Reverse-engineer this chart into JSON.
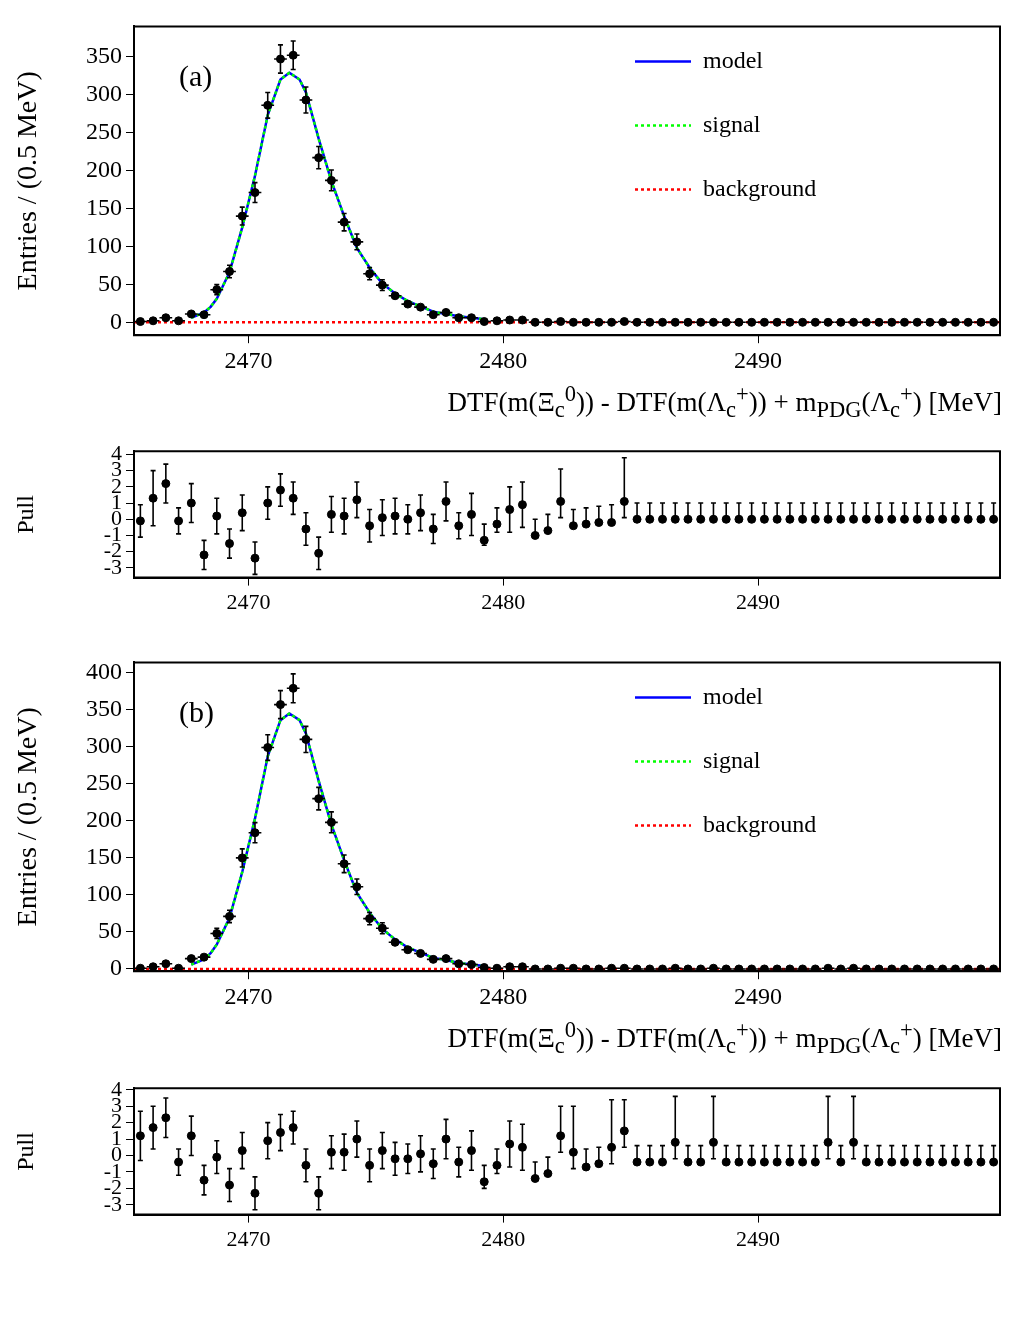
{
  "chart_data": [
    {
      "type": "scatter",
      "xlabel": "DTF(m(Ξ$_{c}$$^{0}$)) - DTF(m(Λ$_{c}$$^{+}$)) + m$_{PDG}$(Λ$_{c}$$^{+}$) [MeV]",
      "ylabel": "Entries / (0.5 MeV)",
      "annotations": [
        "(a)"
      ],
      "xlim": [
        2465.5,
        2499.5
      ],
      "xticks": [
        2470,
        2480,
        2490
      ],
      "ylim": [
        -17,
        390
      ],
      "yticks": [
        0,
        50,
        100,
        150,
        200,
        250,
        300,
        350
      ],
      "legend": "top right",
      "marker": "circle",
      "series": [
        {
          "color": "#000000",
          "x": [
            2465.75,
            2466.25,
            2466.75,
            2467.25,
            2467.75,
            2468.25,
            2468.75,
            2469.25,
            2469.75,
            2470.25,
            2470.75,
            2471.25,
            2471.75,
            2472.25,
            2472.75,
            2473.25,
            2473.75,
            2474.25,
            2474.75,
            2475.25,
            2475.75,
            2476.25,
            2476.75,
            2477.25,
            2477.75,
            2478.25,
            2478.75,
            2479.25,
            2479.75,
            2480.25,
            2480.75,
            2481.25,
            2481.75,
            2482.25,
            2482.75,
            2483.25,
            2483.75,
            2484.25,
            2484.75,
            2485.25,
            2485.75,
            2486.25,
            2486.75,
            2487.25,
            2487.75,
            2488.25,
            2488.75,
            2489.25,
            2489.75,
            2490.25,
            2490.75,
            2491.25,
            2491.75,
            2492.25,
            2492.75,
            2493.25,
            2493.75,
            2494.25,
            2494.75,
            2495.25,
            2495.75,
            2496.25,
            2496.75,
            2497.25,
            2497.75,
            2498.25,
            2498.75,
            2499.25
          ],
          "values": [
            1,
            2,
            6,
            2,
            11,
            10,
            43,
            67,
            140,
            171,
            286,
            347,
            352,
            293,
            217,
            187,
            132,
            106,
            64,
            49,
            35,
            24,
            20,
            10,
            13,
            6,
            6,
            1,
            2,
            3,
            3,
            0,
            0,
            1,
            0,
            0,
            0,
            0,
            1,
            0,
            0,
            0,
            0,
            0,
            0,
            0,
            0,
            0,
            0,
            0,
            0,
            0,
            0,
            0,
            0,
            0,
            0,
            0,
            0,
            0,
            0,
            0,
            0,
            0,
            0,
            0,
            0,
            0
          ],
          "errors": [
            null,
            null,
            null,
            null,
            null,
            null,
            6.6,
            8.2,
            11.8,
            13.1,
            16.9,
            18.6,
            18.8,
            17.1,
            14.7,
            13.7,
            11.5,
            10.3,
            8,
            7,
            null,
            null,
            null,
            null,
            null,
            null,
            null,
            null,
            null,
            null,
            null,
            null,
            null,
            null,
            null,
            null,
            null,
            null,
            null,
            null,
            null,
            null,
            null,
            null,
            null,
            null,
            null,
            null,
            null,
            null,
            null,
            null,
            null,
            null,
            null,
            null,
            null,
            null,
            null,
            null,
            null,
            null,
            null,
            null,
            null,
            null,
            null,
            null
          ],
          "xerrors": [
            0.25,
            0.25,
            0.25,
            0.25,
            0.25,
            0.25,
            0.25,
            0.25,
            0.25,
            0.25,
            0.25,
            0.25,
            0.25,
            0.25,
            0.25,
            0.25,
            0.25,
            0.25,
            0.25,
            0.25,
            0.25,
            0.25,
            0.25,
            0.25,
            0.25,
            0.25,
            0.25,
            0.25,
            0.25,
            0.25,
            0.25,
            0.25,
            0.25,
            0.25,
            0.25,
            0.25,
            0.25,
            0.25,
            0.25,
            0.25,
            0.25,
            0.25,
            0.25,
            0.25,
            0.25,
            0.25,
            0.25,
            0.25,
            0.25,
            0.25,
            0.25,
            0.25,
            0.25,
            0.25,
            0.25,
            0.25,
            0.25,
            0.25,
            0.25,
            0.25,
            0.25,
            0.25,
            0.25,
            0.25,
            0.25,
            0.25,
            0.25,
            0.25
          ]
        },
        {
          "type": "line",
          "name": "model",
          "color": "#0000ff",
          "line_style": "solid",
          "marker": "none",
          "x": [
            2467.75,
            2468.25,
            2468.5,
            2468.75,
            2469.25,
            2469.75,
            2470.25,
            2470.75,
            2471.25,
            2471.6,
            2472.0,
            2472.25,
            2472.75,
            2473.25,
            2473.75,
            2474.25,
            2474.75,
            2475.25,
            2475.75,
            2476.25,
            2476.75,
            2477.25,
            2477.75,
            2478.25,
            2478.75,
            2479.25
          ],
          "values": [
            6,
            13,
            20,
            31,
            66,
            125,
            193,
            273,
            320,
            329,
            320,
            303,
            242,
            186,
            140,
            98,
            72,
            51,
            38,
            28,
            21,
            14,
            11,
            8,
            6,
            4
          ]
        },
        {
          "type": "line",
          "name": "signal",
          "color": "#00ff00",
          "line_style": "dotted",
          "marker": "none",
          "x": [
            2467.75,
            2468.25,
            2468.5,
            2468.75,
            2469.25,
            2469.75,
            2470.25,
            2470.75,
            2471.25,
            2471.6,
            2472.0,
            2472.25,
            2472.75,
            2473.25,
            2473.75,
            2474.25,
            2474.75,
            2475.25,
            2475.75,
            2476.25,
            2476.75,
            2477.25,
            2477.75,
            2478.25,
            2478.75,
            2479.25
          ],
          "values": [
            6,
            13,
            20,
            31,
            66,
            125,
            193,
            273,
            320,
            329,
            320,
            303,
            242,
            186,
            140,
            98,
            72,
            51,
            38,
            28,
            21,
            14,
            11,
            8,
            6,
            4
          ]
        },
        {
          "type": "line",
          "name": "background",
          "color": "#ff0000",
          "line_style": "dotted",
          "marker": "none",
          "x": [
            2465.5,
            2499.5
          ],
          "values": [
            0,
            0
          ]
        }
      ]
    },
    {
      "type": "scatter",
      "ylabel": "Pull",
      "xlim": [
        2465.5,
        2499.5
      ],
      "xticks": [
        2470,
        2480,
        2490
      ],
      "ylim": [
        -3.6,
        4.2
      ],
      "yticks": [
        -3,
        -2,
        -1,
        0,
        1,
        2,
        3,
        4
      ],
      "marker": "circle",
      "series": [
        {
          "color": "#000000",
          "x": [
            2465.75,
            2466.25,
            2466.75,
            2467.25,
            2467.75,
            2468.25,
            2468.75,
            2469.25,
            2469.75,
            2470.25,
            2470.75,
            2471.25,
            2471.75,
            2472.25,
            2472.75,
            2473.25,
            2473.75,
            2474.25,
            2474.75,
            2475.25,
            2475.75,
            2476.25,
            2476.75,
            2477.25,
            2477.75,
            2478.25,
            2478.75,
            2479.25,
            2479.75,
            2480.25,
            2480.75,
            2481.25,
            2481.75,
            2482.25,
            2482.75,
            2483.25,
            2483.75,
            2484.25,
            2484.75,
            2485.25,
            2485.75,
            2486.25,
            2486.75,
            2487.25,
            2487.75,
            2488.25,
            2488.75,
            2489.25,
            2489.75,
            2490.25,
            2490.75,
            2491.25,
            2491.75,
            2492.25,
            2492.75,
            2493.25,
            2493.75,
            2494.25,
            2494.75,
            2495.25,
            2495.75,
            2496.25,
            2496.75,
            2497.25,
            2497.75,
            2498.25,
            2498.75,
            2499.25
          ],
          "values": [
            -0.1,
            1.3,
            2.2,
            -0.1,
            1.0,
            -2.2,
            0.2,
            -1.5,
            0.4,
            -2.4,
            1.0,
            1.8,
            1.3,
            -0.6,
            -2.1,
            0.3,
            0.2,
            1.2,
            -0.4,
            0.1,
            0.2,
            0.0,
            0.4,
            -0.6,
            1.1,
            -0.4,
            0.3,
            -1.3,
            -0.3,
            0.6,
            0.9,
            -1.0,
            -0.7,
            1.1,
            -0.4,
            -0.3,
            -0.2,
            -0.2,
            1.1,
            0,
            0,
            0,
            0,
            0,
            0,
            0,
            0,
            0,
            0,
            0,
            0,
            0,
            0,
            0,
            0,
            0,
            0,
            0,
            0,
            0,
            0,
            0,
            0,
            0,
            0,
            0,
            0,
            0
          ],
          "errors": [
            1,
            1.7,
            1.2,
            0.8,
            1.2,
            0.9,
            1.1,
            0.9,
            1.1,
            1.0,
            1.0,
            1.0,
            1.0,
            1.0,
            1.0,
            1.1,
            1.1,
            1.1,
            1.0,
            1.1,
            1.1,
            0.9,
            1.1,
            0.9,
            1.2,
            0.8,
            1.3,
            [
              -1.6,
              -0.3
            ],
            [
              -0.8,
              0.7
            ],
            1.4,
            1.4,
            [
              -1.0,
              0.0
            ],
            [
              -0.7,
              0.3
            ],
            [
              0.1,
              3.1
            ],
            [
              -0.4,
              0.6
            ],
            [
              -0.3,
              0.7
            ],
            [
              -0.2,
              0.8
            ],
            [
              -0.2,
              0.9
            ],
            [
              0.1,
              3.8
            ],
            [
              0,
              1
            ],
            [
              0,
              1
            ],
            [
              0,
              1
            ],
            [
              0,
              1
            ],
            [
              0,
              1
            ],
            [
              0,
              1
            ],
            [
              0,
              1
            ],
            [
              0,
              1
            ],
            [
              0,
              1
            ],
            [
              0,
              1
            ],
            [
              0,
              1
            ],
            [
              0,
              1
            ],
            [
              0,
              1
            ],
            [
              0,
              1
            ],
            [
              0,
              1
            ],
            [
              0,
              1
            ],
            [
              0,
              1
            ],
            [
              0,
              1
            ],
            [
              0,
              1
            ],
            [
              0,
              1
            ],
            [
              0,
              1
            ],
            [
              0,
              1
            ],
            [
              0,
              1
            ],
            [
              0,
              1
            ],
            [
              0,
              1
            ],
            [
              0,
              1
            ],
            [
              0,
              1
            ],
            [
              0,
              1
            ],
            [
              0,
              1
            ]
          ]
        }
      ]
    },
    {
      "type": "scatter",
      "xlabel": "DTF(m(Ξ$_{c}$$^{0}$)) - DTF(m(Λ$_{c}$$^{+}$)) + m$_{PDG}$(Λ$_{c}$$^{+}$) [MeV]",
      "ylabel": "Entries / (0.5 MeV)",
      "annotations": [
        "(b)"
      ],
      "xlim": [
        2465.5,
        2499.5
      ],
      "xticks": [
        2470,
        2480,
        2490
      ],
      "ylim": [
        -3,
        414
      ],
      "yticks": [
        0,
        50,
        100,
        150,
        200,
        250,
        300,
        350,
        400
      ],
      "legend": "top right",
      "marker": "circle",
      "series": [
        {
          "color": "#000000",
          "x": [
            2465.75,
            2466.25,
            2466.75,
            2467.25,
            2467.75,
            2468.25,
            2468.75,
            2469.25,
            2469.75,
            2470.25,
            2470.75,
            2471.25,
            2471.75,
            2472.25,
            2472.75,
            2473.25,
            2473.75,
            2474.25,
            2474.75,
            2475.25,
            2475.75,
            2476.25,
            2476.75,
            2477.25,
            2477.75,
            2478.25,
            2478.75,
            2479.25,
            2479.75,
            2480.25,
            2480.75,
            2481.25,
            2481.75,
            2482.25,
            2482.75,
            2483.25,
            2483.75,
            2484.25,
            2484.75,
            2485.25,
            2485.75,
            2486.25,
            2486.75,
            2487.25,
            2487.75,
            2488.25,
            2488.75,
            2489.25,
            2489.75,
            2490.25,
            2490.75,
            2491.25,
            2491.75,
            2492.25,
            2492.75,
            2493.25,
            2493.75,
            2494.25,
            2494.75,
            2495.25,
            2495.75,
            2496.25,
            2496.75,
            2497.25,
            2497.75,
            2498.25,
            2498.75,
            2499.25
          ],
          "values": [
            1,
            3,
            7,
            1,
            14,
            16,
            48,
            71,
            150,
            184,
            299,
            357,
            379,
            310,
            230,
            198,
            142,
            111,
            68,
            55,
            36,
            26,
            21,
            13,
            14,
            7,
            6,
            2,
            1,
            3,
            3,
            0,
            0,
            1,
            1,
            0,
            0,
            1,
            1,
            0,
            0,
            0,
            1,
            0,
            0,
            1,
            0,
            0,
            0,
            0,
            0,
            0,
            0,
            0,
            1,
            0,
            1,
            0,
            0,
            0,
            0,
            0,
            0,
            0,
            0,
            0,
            0,
            0
          ],
          "errors": [
            null,
            null,
            null,
            null,
            null,
            null,
            6.9,
            8.4,
            12.2,
            13.6,
            17.3,
            18.9,
            19.5,
            17.6,
            15.2,
            14.1,
            11.9,
            10.5,
            8.2,
            7.4,
            null,
            null,
            null,
            null,
            null,
            null,
            null,
            null,
            null,
            null,
            null,
            null,
            null,
            null,
            null,
            null,
            null,
            null,
            null,
            null,
            null,
            null,
            null,
            null,
            null,
            null,
            null,
            null,
            null,
            null,
            null,
            null,
            null,
            null,
            null,
            null,
            null,
            null,
            null,
            null,
            null,
            null,
            null,
            null,
            null,
            null,
            null,
            null
          ],
          "xerrors": [
            0.25,
            0.25,
            0.25,
            0.25,
            0.25,
            0.25,
            0.25,
            0.25,
            0.25,
            0.25,
            0.25,
            0.25,
            0.25,
            0.25,
            0.25,
            0.25,
            0.25,
            0.25,
            0.25,
            0.25,
            0.25,
            0.25,
            0.25,
            0.25,
            0.25,
            0.25,
            0.25,
            0.25,
            0.25,
            0.25,
            0.25,
            0.25,
            0.25,
            0.25,
            0.25,
            0.25,
            0.25,
            0.25,
            0.25,
            0.25,
            0.25,
            0.25,
            0.25,
            0.25,
            0.25,
            0.25,
            0.25,
            0.25,
            0.25,
            0.25,
            0.25,
            0.25,
            0.25,
            0.25,
            0.25,
            0.25,
            0.25,
            0.25,
            0.25,
            0.25,
            0.25,
            0.25,
            0.25,
            0.25,
            0.25,
            0.25,
            0.25,
            0.25
          ]
        },
        {
          "type": "line",
          "name": "model",
          "color": "#0000ff",
          "line_style": "solid",
          "marker": "none",
          "x": [
            2467.75,
            2468.25,
            2468.5,
            2468.75,
            2469.25,
            2469.75,
            2470.25,
            2470.75,
            2471.25,
            2471.6,
            2472.0,
            2472.25,
            2472.75,
            2473.25,
            2473.75,
            2474.25,
            2474.75,
            2475.25,
            2475.75,
            2476.25,
            2476.75,
            2477.25,
            2477.75,
            2478.25,
            2478.75,
            2479.25
          ],
          "values": [
            6,
            13,
            21,
            33,
            69,
            131,
            203,
            287,
            336,
            345,
            336,
            318,
            254,
            195,
            147,
            103,
            76,
            54,
            40,
            29,
            22,
            15,
            12,
            8,
            6,
            4
          ]
        },
        {
          "type": "line",
          "name": "signal",
          "color": "#00ff00",
          "line_style": "dotted",
          "marker": "none",
          "x": [
            2467.75,
            2468.25,
            2468.5,
            2468.75,
            2469.25,
            2469.75,
            2470.25,
            2470.75,
            2471.25,
            2471.6,
            2472.0,
            2472.25,
            2472.75,
            2473.25,
            2473.75,
            2474.25,
            2474.75,
            2475.25,
            2475.75,
            2476.25,
            2476.75,
            2477.25,
            2477.75,
            2478.25,
            2478.75,
            2479.25
          ],
          "values": [
            6,
            13,
            21,
            33,
            69,
            131,
            203,
            287,
            336,
            345,
            336,
            318,
            254,
            195,
            147,
            103,
            76,
            54,
            40,
            29,
            22,
            15,
            12,
            8,
            6,
            4
          ]
        },
        {
          "type": "line",
          "name": "background",
          "color": "#ff0000",
          "line_style": "dotted",
          "marker": "none",
          "x": [
            2465.5,
            2499.5
          ],
          "values": [
            0,
            0
          ]
        }
      ]
    },
    {
      "type": "scatter",
      "ylabel": "Pull",
      "xlim": [
        2465.5,
        2499.5
      ],
      "xticks": [
        2470,
        2480,
        2490
      ],
      "ylim": [
        -3.6,
        4.1
      ],
      "yticks": [
        -3,
        -2,
        -1,
        0,
        1,
        2,
        3,
        4
      ],
      "marker": "circle",
      "series": [
        {
          "color": "#000000",
          "x": [
            2465.75,
            2466.25,
            2466.75,
            2467.25,
            2467.75,
            2468.25,
            2468.75,
            2469.25,
            2469.75,
            2470.25,
            2470.75,
            2471.25,
            2471.75,
            2472.25,
            2472.75,
            2473.25,
            2473.75,
            2474.25,
            2474.75,
            2475.25,
            2475.75,
            2476.25,
            2476.75,
            2477.25,
            2477.75,
            2478.25,
            2478.75,
            2479.25,
            2479.75,
            2480.25,
            2480.75,
            2481.25,
            2481.75,
            2482.25,
            2482.75,
            2483.25,
            2483.75,
            2484.25,
            2484.75,
            2485.25,
            2485.75,
            2486.25,
            2486.75,
            2487.25,
            2487.75,
            2488.25,
            2488.75,
            2489.25,
            2489.75,
            2490.25,
            2490.75,
            2491.25,
            2491.75,
            2492.25,
            2492.75,
            2493.25,
            2493.75,
            2494.25,
            2494.75,
            2495.25,
            2495.75,
            2496.25,
            2496.75,
            2497.25,
            2497.75,
            2498.25,
            2498.75,
            2499.25
          ],
          "values": [
            1.2,
            1.7,
            2.3,
            -0.4,
            1.2,
            -1.5,
            -0.1,
            -1.8,
            0.3,
            -2.3,
            0.9,
            1.4,
            1.7,
            -0.6,
            -2.3,
            0.2,
            0.2,
            1.0,
            -0.6,
            0.3,
            -0.2,
            -0.2,
            0.1,
            -0.5,
            1.0,
            -0.4,
            0.3,
            -1.6,
            -0.6,
            0.7,
            0.5,
            -1.4,
            -1.1,
            1.2,
            0.2,
            -0.7,
            -0.5,
            0.5,
            1.5,
            -0.4,
            -0.4,
            -0.4,
            0.8,
            -0.4,
            -0.4,
            0.8,
            -0.4,
            -0.4,
            -0.4,
            -0.4,
            -0.4,
            -0.4,
            -0.4,
            -0.4,
            0.8,
            -0.4,
            0.8,
            -0.4,
            -0.4,
            -0.4,
            -0.4,
            -0.4,
            -0.4,
            -0.4,
            -0.4,
            -0.4,
            -0.4,
            -0.4
          ],
          "errors": [
            1.5,
            1.3,
            1.2,
            0.8,
            1.2,
            0.9,
            1.0,
            1.0,
            1.1,
            1.0,
            1.1,
            1.1,
            1.0,
            1.0,
            1.0,
            1.0,
            1.1,
            1.1,
            1.0,
            1.1,
            1.0,
            0.9,
            1.1,
            0.9,
            1.2,
            0.9,
            1.2,
            [
              -2.0,
              -0.6
            ],
            [
              -1.1,
              0.4
            ],
            1.4,
            1.4,
            [
              -1.4,
              -0.4
            ],
            [
              -1.1,
              -0.1
            ],
            [
              0.2,
              3.0
            ],
            [
              -0.8,
              3.0
            ],
            [
              -0.7,
              0.4
            ],
            [
              -0.5,
              0.5
            ],
            [
              -0.5,
              3.4
            ],
            [
              0.5,
              3.4
            ],
            [
              -0.4,
              0.6
            ],
            [
              -0.4,
              0.6
            ],
            [
              -0.4,
              0.6
            ],
            [
              -0.2,
              3.6
            ],
            [
              -0.4,
              0.6
            ],
            [
              -0.4,
              0.6
            ],
            [
              -0.2,
              3.6
            ],
            [
              -0.4,
              0.6
            ],
            [
              -0.4,
              0.6
            ],
            [
              -0.4,
              0.6
            ],
            [
              -0.4,
              0.6
            ],
            [
              -0.4,
              0.6
            ],
            [
              -0.4,
              0.6
            ],
            [
              -0.4,
              0.6
            ],
            [
              -0.4,
              0.6
            ],
            [
              -0.2,
              3.6
            ],
            [
              -0.4,
              0.6
            ],
            [
              -0.2,
              3.6
            ],
            [
              -0.4,
              0.6
            ],
            [
              -0.4,
              0.6
            ],
            [
              -0.4,
              0.6
            ],
            [
              -0.4,
              0.6
            ],
            [
              -0.4,
              0.6
            ],
            [
              -0.4,
              0.6
            ],
            [
              -0.4,
              0.6
            ],
            [
              -0.4,
              0.6
            ],
            [
              -0.4,
              0.6
            ],
            [
              -0.4,
              0.6
            ],
            [
              -0.4,
              0.6
            ]
          ]
        }
      ]
    }
  ]
}
